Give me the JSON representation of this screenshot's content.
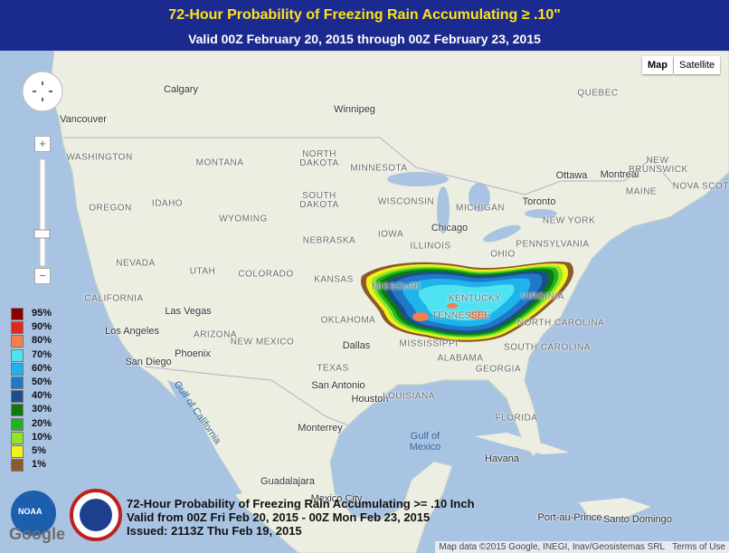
{
  "header": {
    "title": "72-Hour Probability of Freezing Rain Accumulating ≥ .10\"",
    "subtitle": "Valid 00Z February 20, 2015 through 00Z February 23, 2015"
  },
  "controls": {
    "map": "Map",
    "satellite": "Satellite",
    "zoom_in": "+",
    "zoom_out": "−"
  },
  "legend": [
    {
      "label": "95%",
      "color": "#8b0000"
    },
    {
      "label": "90%",
      "color": "#e0281e"
    },
    {
      "label": "80%",
      "color": "#f4804e"
    },
    {
      "label": "70%",
      "color": "#4fe3f2"
    },
    {
      "label": "60%",
      "color": "#20b2ea"
    },
    {
      "label": "50%",
      "color": "#1f78c8"
    },
    {
      "label": "40%",
      "color": "#1a4f8c"
    },
    {
      "label": "30%",
      "color": "#0c7a10"
    },
    {
      "label": "20%",
      "color": "#22b322"
    },
    {
      "label": "10%",
      "color": "#8ee52a"
    },
    {
      "label": "5%",
      "color": "#f2f21a"
    },
    {
      "label": "1%",
      "color": "#8b5a2b"
    }
  ],
  "places": [
    "Calgary",
    "Vancouver",
    "Winnipeg",
    "QUEBEC",
    "WASHINGTON",
    "MONTANA",
    "NORTH DAKOTA",
    "MINNESOTA",
    "Ottawa",
    "Montreal",
    "NEW BRUNSWICK",
    "NOVA SCOTIA",
    "MAINE",
    "OREGON",
    "IDAHO",
    "WYOMING",
    "SOUTH DAKOTA",
    "WISCONSIN",
    "MICHIGAN",
    "Toronto",
    "NEW YORK",
    "Chicago",
    "IOWA",
    "NEBRASKA",
    "ILLINOIS",
    "OHIO",
    "PENNSYLVANIA",
    "NEVADA",
    "UTAH",
    "COLORADO",
    "KANSAS",
    "MISSOURI",
    "KENTUCKY",
    "VIRGINIA",
    "CALIFORNIA",
    "Las Vegas",
    "OKLAHOMA",
    "TENNESSEE",
    "NORTH CAROLINA",
    "Los Angeles",
    "ARIZONA",
    "Phoenix",
    "NEW MEXICO",
    "Dallas",
    "MISSISSIPPI",
    "SOUTH CAROLINA",
    "ALABAMA",
    "GEORGIA",
    "San Diego",
    "TEXAS",
    "San Antonio",
    "Houston",
    "LOUISIANA",
    "FLORIDA",
    "Gulf of California",
    "Monterrey",
    "Gulf of\nMexico",
    "Havana",
    "Guadalajara",
    "Mexico City",
    "Port-au-Prince",
    "Santo Domingo"
  ],
  "caption": {
    "line1": "72-Hour Probability of Freezing Rain Accumulating >= .10 Inch",
    "line2": "Valid from 00Z Fri Feb 20, 2015 - 00Z Mon Feb 23, 2015",
    "line3": "Issued: 2113Z Thu Feb 19, 2015"
  },
  "logos": {
    "noaa": "NOAA",
    "google": "Google"
  },
  "attribution": {
    "data": "Map data ©2015 Google, INEGI, Inav/Geosistemas SRL",
    "terms": "Terms of Use"
  }
}
